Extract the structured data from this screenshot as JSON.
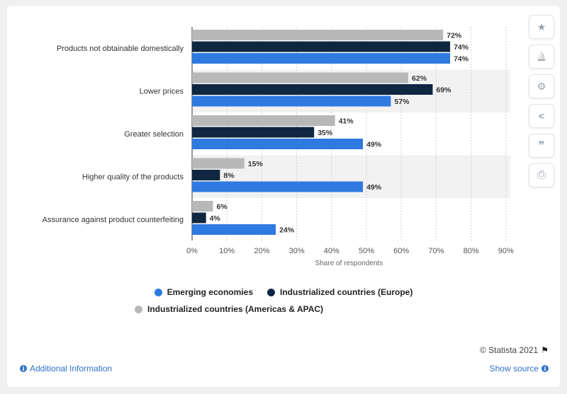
{
  "chart_data": {
    "type": "bar",
    "orientation": "horizontal",
    "categories": [
      "Products not obtainable domestically",
      "Lower prices",
      "Greater selection",
      "Higher quality of the products",
      "Assurance against product counterfeiting"
    ],
    "series": [
      {
        "name": "Industrialized countries (Americas & APAC)",
        "color": "#b8b8b8",
        "values": [
          72,
          62,
          41,
          15,
          6
        ]
      },
      {
        "name": "Industrialized countries (Europe)",
        "color": "#0f2740",
        "values": [
          74,
          69,
          35,
          8,
          4
        ]
      },
      {
        "name": "Emerging economies",
        "color": "#2f7ae0",
        "values": [
          74,
          57,
          49,
          49,
          24
        ]
      }
    ],
    "xlabel": "Share of respondents",
    "xlim": [
      0,
      90
    ],
    "ticks": [
      "0%",
      "10%",
      "20%",
      "30%",
      "40%",
      "50%",
      "60%",
      "70%",
      "80%",
      "90%"
    ],
    "value_suffix": "%",
    "grid": true,
    "legend_position": "bottom"
  },
  "legend": {
    "emerging": "Emerging economies",
    "europe": "Industrialized countries (Europe)",
    "americas": "Industrialized countries (Americas & APAC)"
  },
  "footer": {
    "copyright": "© Statista 2021",
    "additional_info": "Additional Information",
    "show_source": "Show source"
  },
  "toolbar": {
    "star": "★",
    "bell": "🔔",
    "gear": "⚙",
    "share": "<",
    "quote": "❞",
    "print": "⎙"
  },
  "colors": {
    "emerging": "#2f7ae0",
    "europe": "#0f2740",
    "americas": "#b8b8b8",
    "link": "#2f73c9"
  }
}
